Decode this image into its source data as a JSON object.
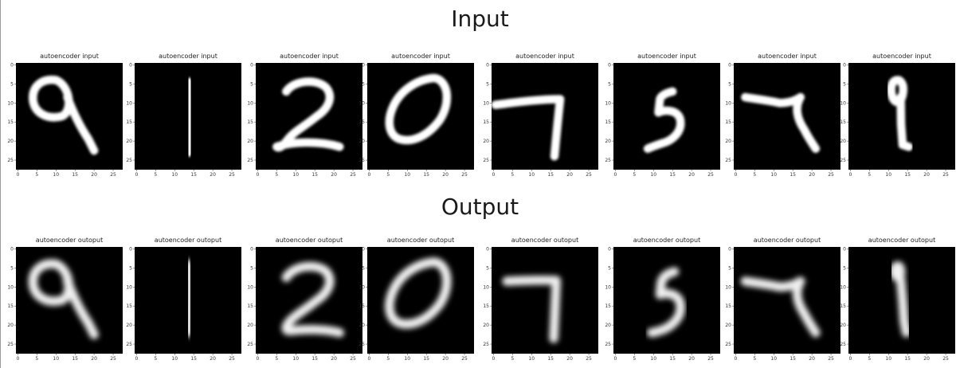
{
  "titles": {
    "input": "Input",
    "output": "Output"
  },
  "axis": {
    "x_ticks": [
      "0",
      "5",
      "10",
      "15",
      "20",
      "25"
    ],
    "y_ticks": [
      "0",
      "5",
      "10",
      "15",
      "20",
      "25"
    ]
  },
  "rows": [
    {
      "key": "input",
      "panel_title": "autoencoder input",
      "images": [
        {
          "digit": "9",
          "strokes": [
            "M10.5 4.5 C7 4 4 6 4.5 10 C5 13 8 15 12 14 C14.5 13 14.5 8 12 5.5 C11.5 5 11 4.7 10.5 4.5",
            "M13.5 9 C15 13 17 17 19 20 L20.5 23"
          ]
        },
        {
          "digit": "1",
          "strokes": [
            "M14.3 5 L14.6 10 L14.4 16 L14.2 23.5"
          ]
        },
        {
          "digit": "2",
          "strokes": [
            "M8 7.5 C10 4.5 16 4 18.5 6.5 C20.5 9 19 12 16 14 C13 16.5 10 18 8.5 20 C7 22 6 22.5 5.5 22 C10 20.5 17 20.5 22 22"
          ]
        },
        {
          "digit": "0",
          "strokes": [
            "M17 4 C13 4.5 9 7 7 11 C5 15 5.5 19 8.5 20 C12 21 16 19 19 15 C21.5 11 21.5 6.5 19 4.5 C18.3 4 17.6 3.9 17 4"
          ]
        },
        {
          "digit": "7",
          "strokes": [
            "M1 11 C5 10.5 12 9.5 18 9.5 C17.5 14 17 19 16.5 24.5"
          ]
        },
        {
          "digit": "5",
          "strokes": [
            "M15.5 7.5 C14 7.8 12.5 8.5 12.2 9.5 L11.8 13 C14 12 17.5 12.5 17.6 15.5 C17.8 18.5 15 20.5 13 21 C11.5 21.5 10 22 9 22.5"
          ]
        },
        {
          "digit": "7",
          "strokes": [
            "M3 9 C6 9.5 10 10 12 10.5 C14 10.5 16 10 17.5 9 C16 11.5 16.5 14.5 18.5 17.5 C19.5 19.5 20.5 21 21.5 22.5"
          ]
        },
        {
          "digit": "9",
          "strokes": [
            "M13 4.5 C11.5 4.5 11 6 11.3 8 C11.6 10 12.7 10.7 13.5 10 C14.3 9 14.7 6.5 14 5.3 C13.7 4.8 13.4 4.5 13 4.5",
            "M13.7 9 L13.8 16 L14.2 21.5 L15.8 22"
          ]
        }
      ]
    },
    {
      "key": "output",
      "panel_title": "autoencoder outoput",
      "images": [
        {
          "digit": "9",
          "strokes": [
            "M10.5 4.5 C7 4 4 6 4.5 10 C5 13 8 15 12 14 C14.5 13 14.5 8 12 5.5 C11.5 5 11 4.7 10.5 4.5",
            "M13.5 9 C15 13 17 17 19 20 L20.5 23"
          ]
        },
        {
          "digit": "1",
          "strokes": [
            "M14.2 4.5 L14.5 10 L14.4 16 L14.1 22.5"
          ]
        },
        {
          "digit": "2",
          "strokes": [
            "M8 8 C10 4.8 16 4.2 18.5 6.5 C20.5 9 19 12 16 14 C13 16.5 10 18 8.5 20 C7.5 21.5 8 22 9 22 C13 21.5 18 21.5 22 22.5"
          ]
        },
        {
          "digit": "0",
          "strokes": [
            "M17 4 C13 4.5 9 7 7 11 C5 15 5.5 19 8.5 20 C12 21 16 19 19 15 C21.5 11 21.5 6.5 19 4.5 C18.3 4 17.6 3.9 17 4"
          ]
        },
        {
          "digit": "7",
          "strokes": [
            "M4 9 C8 8.8 13 8.6 17 8.8 C16.8 14 16.5 19 16.3 24"
          ]
        },
        {
          "digit": "5",
          "strokes": [
            "M16 6.5 C14 7 12.8 8 12.5 9.5 L12.2 12.5 C14.5 11.8 17.5 12.5 17.6 15.5 C17.8 18.5 15.5 20.5 13.5 21.5 C12 22 11 22.5 10 22.5"
          ]
        },
        {
          "digit": "7",
          "strokes": [
            "M3 9 C6 9.5 10 10 12 10.5 C14 10.5 16 10 17.5 9 C16 11.5 16.5 14.5 18.5 17.5 C19.5 19.5 20.5 21 21.5 22.5"
          ]
        },
        {
          "digit": "1",
          "strokes": [
            "M13 5 C12 5 11.7 6.5 12.3 7.5 C12.8 8.3 13.5 8 13.7 7 C13.8 6 13.5 5 13 5",
            "M13.7 8.5 L14.2 14 L14.6 19.5 L15.2 22.5"
          ]
        }
      ]
    }
  ]
}
